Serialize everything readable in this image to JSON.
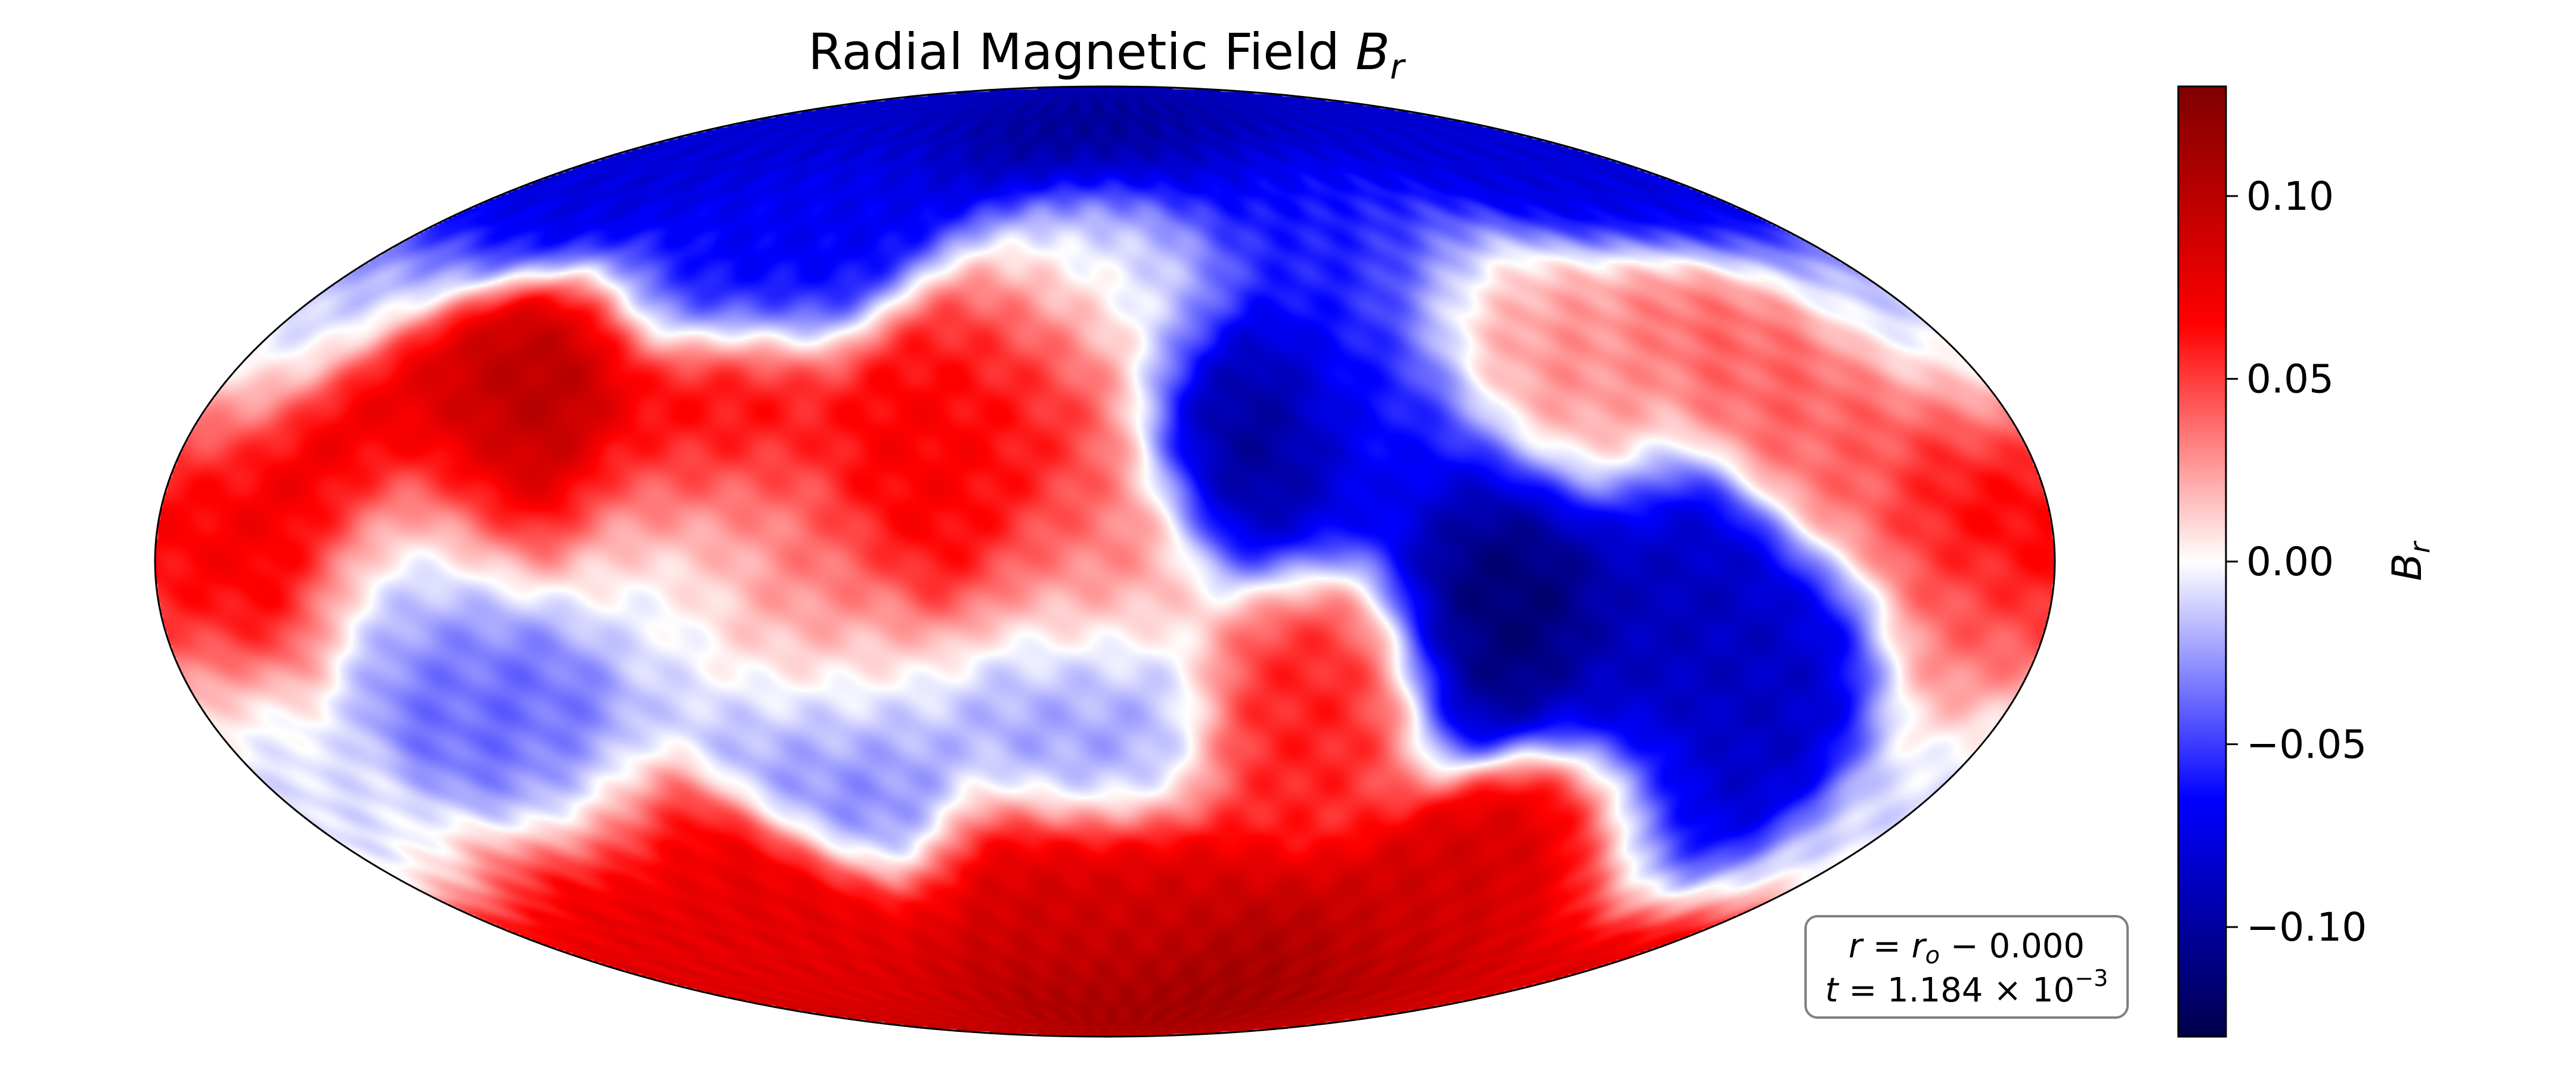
{
  "chart_data": {
    "type": "heatmap",
    "projection": "mollweide",
    "title": {
      "prefix": "Radial Magnetic Field ",
      "symbol": "B",
      "subscript": "r"
    },
    "colormap": "seismic",
    "colors": {
      "min": "#00004c",
      "low": "#0000ff",
      "mid": "#ffffff",
      "high": "#ff0000",
      "max": "#7f0000"
    },
    "colorbar": {
      "range": [
        -0.13,
        0.13
      ],
      "ticks": [
        0.1,
        0.05,
        0.0,
        -0.05,
        -0.1
      ],
      "tick_labels": [
        "0.10",
        "0.05",
        "0.00",
        "−0.05",
        "−0.10"
      ],
      "label_symbol": "B",
      "label_subscript": "r",
      "placement": "right"
    },
    "grid": false,
    "annotation": {
      "line1": {
        "a": "r",
        "eq": " = ",
        "b": "r",
        "b_sub": "o",
        "rest": " −  0.000"
      },
      "line2": {
        "a": "t",
        "eq": " = 1.184 × 10",
        "exp": "−3"
      },
      "placement": "bottom-right"
    },
    "features": [
      {
        "lon": -150,
        "lat": 75,
        "value": -0.08
      },
      {
        "lon": 0,
        "lat": 80,
        "value": -0.11
      },
      {
        "lon": 150,
        "lat": 75,
        "value": -0.08
      },
      {
        "lon": -80,
        "lat": 55,
        "value": -0.07
      },
      {
        "lon": 60,
        "lat": 55,
        "value": -0.06
      },
      {
        "lon": -180,
        "lat": 30,
        "value": -0.02
      },
      {
        "lon": 0,
        "lat": 45,
        "value": -0.01
      },
      {
        "lon": -120,
        "lat": 18,
        "value": 0.11
      },
      {
        "lon": -150,
        "lat": 12,
        "value": 0.08
      },
      {
        "lon": -80,
        "lat": 15,
        "value": 0.08
      },
      {
        "lon": -30,
        "lat": 18,
        "value": 0.07
      },
      {
        "lon": -15,
        "lat": 28,
        "value": 0.06
      },
      {
        "lon": 30,
        "lat": 18,
        "value": -0.11
      },
      {
        "lon": 55,
        "lat": 22,
        "value": -0.06
      },
      {
        "lon": 90,
        "lat": 30,
        "value": 0.03
      },
      {
        "lon": 140,
        "lat": 25,
        "value": 0.04
      },
      {
        "lon": 175,
        "lat": 12,
        "value": 0.08
      },
      {
        "lon": -175,
        "lat": 5,
        "value": 0.07
      },
      {
        "lon": -130,
        "lat": 0,
        "value": -0.03
      },
      {
        "lon": -80,
        "lat": 0,
        "value": -0.02
      },
      {
        "lon": -60,
        "lat": -10,
        "value": 0.05
      },
      {
        "lon": 0,
        "lat": 0,
        "value": 0.04
      },
      {
        "lon": 75,
        "lat": -3,
        "value": -0.12
      },
      {
        "lon": 110,
        "lat": -8,
        "value": -0.09
      },
      {
        "lon": 135,
        "lat": -30,
        "value": -0.09
      },
      {
        "lon": 170,
        "lat": -10,
        "value": 0.04
      },
      {
        "lon": -120,
        "lat": -25,
        "value": -0.04
      },
      {
        "lon": -60,
        "lat": -25,
        "value": -0.04
      },
      {
        "lon": 0,
        "lat": -22,
        "value": -0.03
      },
      {
        "lon": 40,
        "lat": -20,
        "value": 0.06
      },
      {
        "lon": -180,
        "lat": -35,
        "value": -0.01
      },
      {
        "lon": -100,
        "lat": -55,
        "value": 0.08
      },
      {
        "lon": 0,
        "lat": -60,
        "value": 0.09
      },
      {
        "lon": 100,
        "lat": -55,
        "value": 0.09
      },
      {
        "lon": 40,
        "lat": -80,
        "value": 0.12
      },
      {
        "lon": -150,
        "lat": -75,
        "value": 0.08
      }
    ]
  }
}
